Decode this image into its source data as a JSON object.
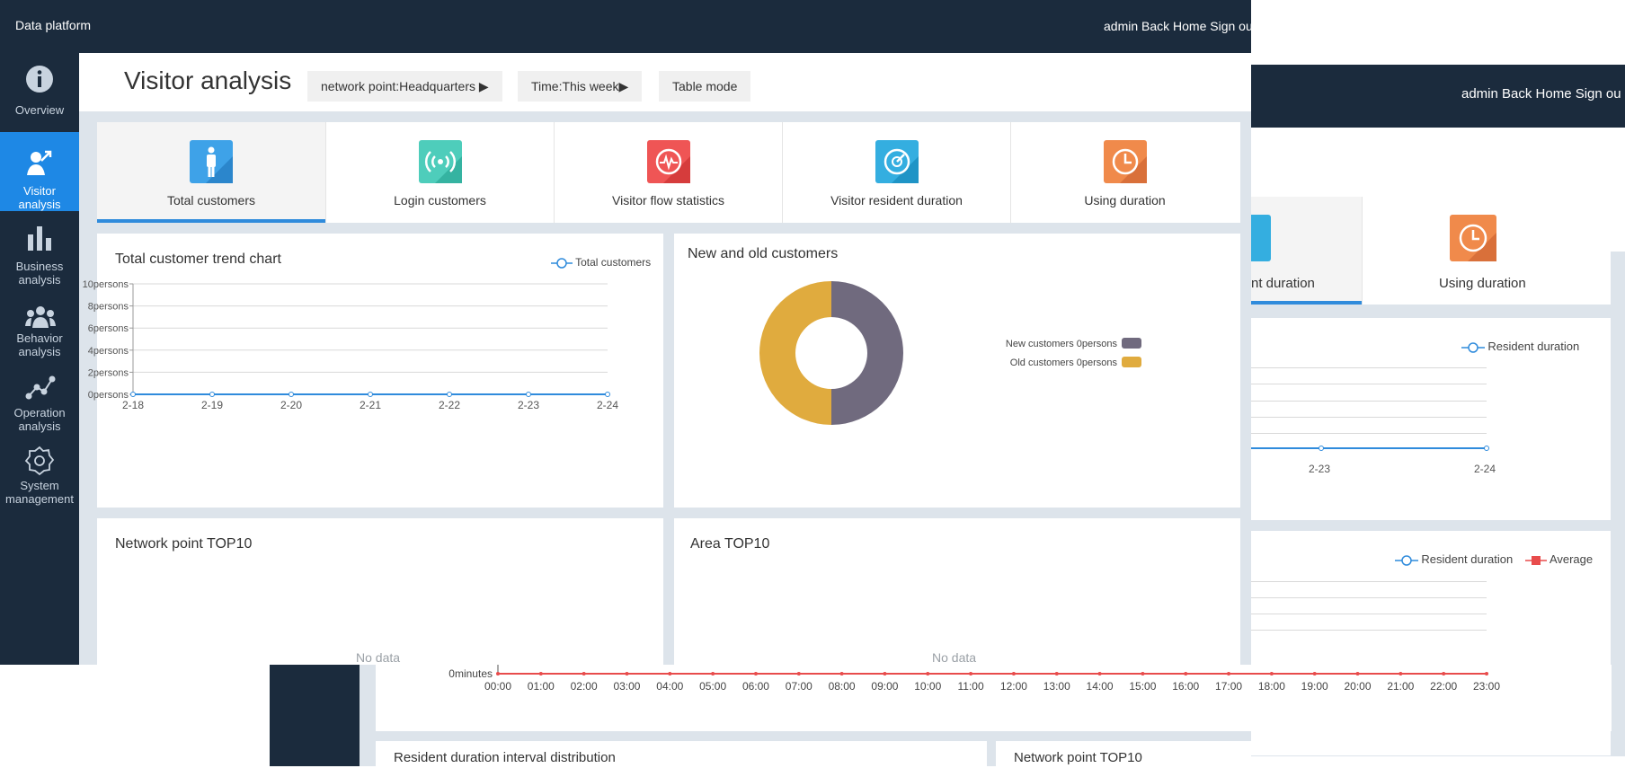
{
  "back_bottom": {
    "card_title_left": "Resident duration interval distribution",
    "card_title_right": "Network point TOP10",
    "chart_data": {
      "type": "line",
      "x": [
        "00:00",
        "01:00",
        "02:00",
        "03:00",
        "04:00",
        "05:00",
        "06:00",
        "07:00",
        "08:00",
        "09:00",
        "10:00",
        "11:00",
        "12:00",
        "13:00",
        "14:00",
        "15:00",
        "16:00",
        "17:00",
        "18:00",
        "19:00",
        "20:00",
        "21:00",
        "22:00",
        "23:00"
      ],
      "series": [
        {
          "name": "Average",
          "values": [
            0,
            0,
            0,
            0,
            0,
            0,
            0,
            0,
            0,
            0,
            0,
            0,
            0,
            0,
            0,
            0,
            0,
            0,
            0,
            0,
            0,
            0,
            0,
            0
          ],
          "color": "#e84c4c"
        }
      ],
      "y_tick_labels": [
        "0minutes"
      ]
    }
  },
  "back_right": {
    "user_links": "admin Back Home  Sign ou",
    "tab_partial_label": "nt duration",
    "tab_label": "Using duration",
    "legend_resident": "Resident duration",
    "legend_resident2": "Resident duration",
    "legend_average": "Average",
    "x_ticks": [
      "2-23",
      "2-24"
    ]
  },
  "app": {
    "name": "Data platform",
    "user_links": "admin Back Home  Sign ou"
  },
  "sidebar": [
    {
      "label1": "Overview",
      "label2": "",
      "icon": "info-icon",
      "active": false
    },
    {
      "label1": "Visitor",
      "label2": "analysis",
      "icon": "visitor-icon",
      "active": true
    },
    {
      "label1": "Business",
      "label2": "analysis",
      "icon": "bar-chart-icon",
      "active": false
    },
    {
      "label1": "Behavior",
      "label2": "analysis",
      "icon": "group-icon",
      "active": false
    },
    {
      "label1": "Operation",
      "label2": "analysis",
      "icon": "line-graph-icon",
      "active": false
    },
    {
      "label1": "System",
      "label2": "management",
      "icon": "gear-icon",
      "active": false
    }
  ],
  "header": {
    "title": "Visitor analysis",
    "filter_network": "network point:Headquarters ▶",
    "filter_time": "Time:This week▶",
    "table_mode": "Table mode"
  },
  "tabs": [
    {
      "label": "Total customers",
      "color": "#3ea2e8",
      "icon": "person-icon"
    },
    {
      "label": "Login customers",
      "color": "#4ecdbb",
      "icon": "wifi-signal-icon"
    },
    {
      "label": "Visitor flow statistics",
      "color": "#ef5555",
      "icon": "pulse-icon"
    },
    {
      "label": "Visitor resident duration",
      "color": "#34aee0",
      "icon": "gauge-icon"
    },
    {
      "label": "Using duration",
      "color": "#f08a4b",
      "icon": "clock-icon"
    }
  ],
  "trend_card": {
    "title": "Total customer trend chart",
    "legend": "Total customers",
    "chart_data": {
      "type": "line",
      "x": [
        "2-18",
        "2-19",
        "2-20",
        "2-21",
        "2-22",
        "2-23",
        "2-24"
      ],
      "series": [
        {
          "name": "Total customers",
          "values": [
            0,
            0,
            0,
            0,
            0,
            0,
            0
          ],
          "color": "#2f8bdc"
        }
      ],
      "y_tick_labels": [
        "0persons",
        "2persons",
        "4persons",
        "6persons",
        "8persons",
        "10persons"
      ],
      "ylim": [
        0,
        10
      ]
    }
  },
  "donut_card": {
    "title": "New and old customers",
    "chart_data": {
      "type": "pie",
      "slices": [
        {
          "name": "New customers",
          "label": "New customers  0persons",
          "value": 0,
          "share": 0.5,
          "color": "#706a7e"
        },
        {
          "name": "Old customers",
          "label": "Old customers  0persons",
          "value": 0,
          "share": 0.5,
          "color": "#e0ab3e"
        }
      ]
    }
  },
  "network_card": {
    "title": "Network point TOP10",
    "empty": "No data"
  },
  "area_card": {
    "title": "Area TOP10",
    "empty": "No data"
  }
}
